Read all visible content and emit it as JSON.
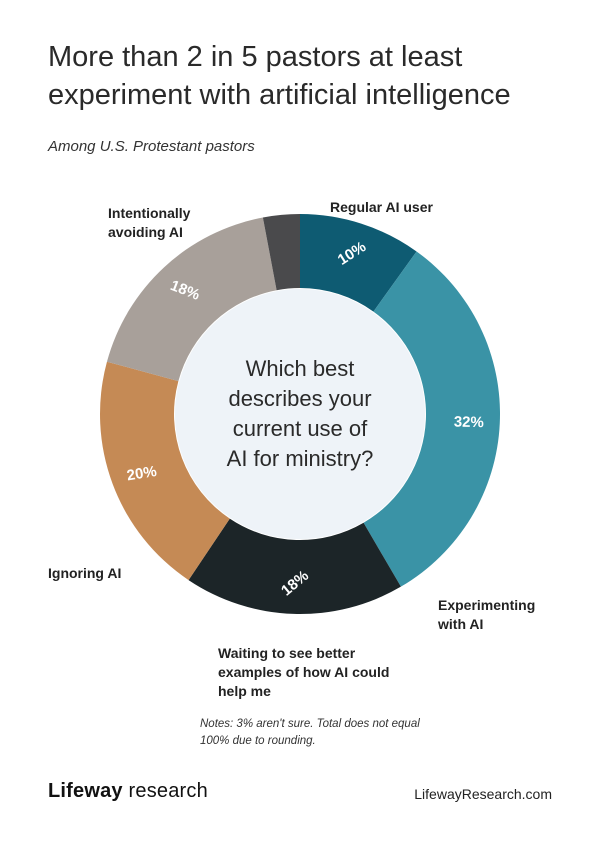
{
  "title": "More than 2 in 5 pastors at least experiment with artificial intelligence",
  "subtitle": "Among U.S. Protestant pastors",
  "chart_data": {
    "type": "pie",
    "style": "donut",
    "center_text": "Which best describes your current use of AI for ministry?",
    "slices": [
      {
        "label": "Regular AI user",
        "value": 10,
        "value_label": "10%",
        "color": "#0e5b72"
      },
      {
        "label": "Experimenting with AI",
        "value": 32,
        "value_label": "32%",
        "color": "#3a93a6"
      },
      {
        "label": "Waiting to see better examples of how AI could help me",
        "value": 18,
        "value_label": "18%",
        "color": "#1c2528"
      },
      {
        "label": "Ignoring AI",
        "value": 20,
        "value_label": "20%",
        "color": "#c58a55"
      },
      {
        "label": "Intentionally avoiding AI",
        "value": 18,
        "value_label": "18%",
        "color": "#a8a09a"
      },
      {
        "label": "Not sure",
        "value": 3,
        "value_label": "",
        "color": "#4a4a4c"
      }
    ]
  },
  "note": "Notes: 3% aren't sure. Total does not equal 100% due to rounding.",
  "brand": {
    "bold": "Lifeway",
    "rest": " research"
  },
  "site": "LifewayResearch.com"
}
